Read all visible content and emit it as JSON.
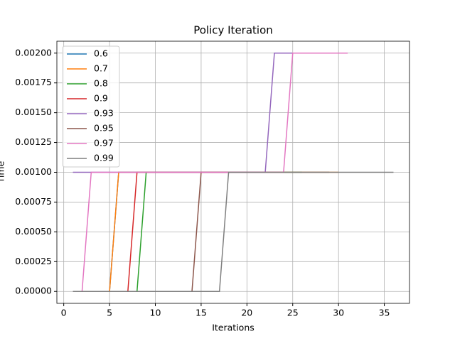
{
  "chart_data": {
    "type": "line",
    "title": "Policy Iteration",
    "x_label": "Iterations",
    "y_label": "Time",
    "x": [
      1,
      2,
      3,
      4,
      5,
      6,
      7,
      8,
      9,
      10,
      11,
      12,
      13,
      14,
      15,
      16,
      17,
      18,
      19,
      20,
      21,
      22,
      23,
      24,
      25,
      26,
      27,
      28,
      29,
      30,
      31,
      32,
      33,
      34,
      35,
      36
    ],
    "xlim": [
      -0.75,
      37.75
    ],
    "xticks": [
      0,
      5,
      10,
      15,
      20,
      25,
      30,
      35
    ],
    "ylim": [
      -0.0001,
      0.0021
    ],
    "yticks": [
      {
        "value": 0,
        "label": "0.00000"
      },
      {
        "value": 0.00025,
        "label": "0.00025"
      },
      {
        "value": 0.0005,
        "label": "0.00050"
      },
      {
        "value": 0.00075,
        "label": "0.00075"
      },
      {
        "value": 0.001,
        "label": "0.00100"
      },
      {
        "value": 0.00125,
        "label": "0.00125"
      },
      {
        "value": 0.0015,
        "label": "0.00150"
      },
      {
        "value": 0.00175,
        "label": "0.00175"
      },
      {
        "value": 0.002,
        "label": "0.00200"
      }
    ],
    "grid": true,
    "legend": "upper left",
    "series": [
      {
        "name": "0.6",
        "color": "#1f77b4",
        "values": [
          0,
          0,
          0,
          0,
          0,
          0.001,
          0.001,
          0.001,
          0.001,
          0.001,
          0.001,
          0.001,
          0.001,
          0.001,
          0.001,
          0.001,
          0.001,
          0.001,
          0.001,
          0.001,
          0.001,
          0.001,
          null,
          null,
          null,
          null,
          null,
          null,
          null,
          null,
          null,
          null,
          null,
          null,
          null,
          null
        ]
      },
      {
        "name": "0.7",
        "color": "#ff7f0e",
        "values": [
          0,
          0,
          0,
          0,
          0,
          0.001,
          0.001,
          0.001,
          0.001,
          0.001,
          0.001,
          0.001,
          0.001,
          0.001,
          0.001,
          0.001,
          0.001,
          0.001,
          0.001,
          0.001,
          0.001,
          0.001,
          0.001,
          0.001,
          0.001,
          0.001,
          0.001,
          0.001,
          0.001,
          0.001,
          null,
          null,
          null,
          null,
          null,
          null
        ]
      },
      {
        "name": "0.8",
        "color": "#2ca02c",
        "values": [
          0,
          0,
          0,
          0,
          0,
          0,
          0,
          0,
          0.001,
          0.001,
          0.001,
          0.001,
          0.001,
          0.001,
          0.001,
          0.001,
          0.001,
          0.001,
          0.001,
          0.001,
          0.001,
          0.001,
          0.001,
          0.001,
          0.001,
          0.001,
          null,
          null,
          null,
          null,
          null,
          null,
          null,
          null,
          null,
          null
        ]
      },
      {
        "name": "0.9",
        "color": "#d62728",
        "values": [
          0,
          0,
          0,
          0,
          0,
          0,
          0,
          0.001,
          0.001,
          0.001,
          0.001,
          0.001,
          0.001,
          0.001,
          0.001,
          0.001,
          0.001,
          0.001,
          0.001,
          0.001,
          0.001,
          0.001,
          0.001,
          0.001,
          null,
          null,
          null,
          null,
          null,
          null,
          null,
          null,
          null,
          null,
          null,
          null
        ]
      },
      {
        "name": "0.93",
        "color": "#9467bd",
        "values": [
          0.001,
          0.001,
          0.001,
          0.001,
          0.001,
          0.001,
          0.001,
          0.001,
          0.001,
          0.001,
          0.001,
          0.001,
          0.001,
          0.001,
          0.001,
          0.001,
          0.001,
          0.001,
          0.001,
          0.001,
          0.001,
          0.001,
          0.002,
          0.002,
          0.002,
          null,
          null,
          null,
          null,
          null,
          null,
          null,
          null,
          null,
          null,
          null
        ]
      },
      {
        "name": "0.95",
        "color": "#8c564b",
        "values": [
          0,
          0,
          0,
          0,
          0,
          0,
          0,
          0,
          0,
          0,
          0,
          0,
          0,
          0,
          0.001,
          0.001,
          0.001,
          0.001,
          0.001,
          0.001,
          0.001,
          0.001,
          0.001,
          0.001,
          0.001,
          0.001,
          0.001,
          0.001,
          0.001,
          null,
          null,
          null,
          null,
          null,
          null,
          null
        ]
      },
      {
        "name": "0.97",
        "color": "#e377c2",
        "values": [
          0,
          0,
          0.001,
          0.001,
          0.001,
          0.001,
          0.001,
          0.001,
          0.001,
          0.001,
          0.001,
          0.001,
          0.001,
          0.001,
          0.001,
          0.001,
          0.001,
          0.001,
          0.001,
          0.001,
          0.001,
          0.001,
          0.001,
          0.001,
          0.002,
          0.002,
          0.002,
          0.002,
          0.002,
          0.002,
          0.002,
          null,
          null,
          null,
          null,
          null
        ]
      },
      {
        "name": "0.99",
        "color": "#7f7f7f",
        "values": [
          0,
          0,
          0,
          0,
          0,
          0,
          0,
          0,
          0,
          0,
          0,
          0,
          0,
          0,
          0,
          0,
          0,
          0.001,
          0.001,
          0.001,
          0.001,
          0.001,
          0.001,
          0.001,
          0.001,
          0.001,
          0.001,
          0.001,
          0.001,
          0.001,
          0.001,
          0.001,
          0.001,
          0.001,
          0.001,
          0.001
        ]
      }
    ]
  }
}
